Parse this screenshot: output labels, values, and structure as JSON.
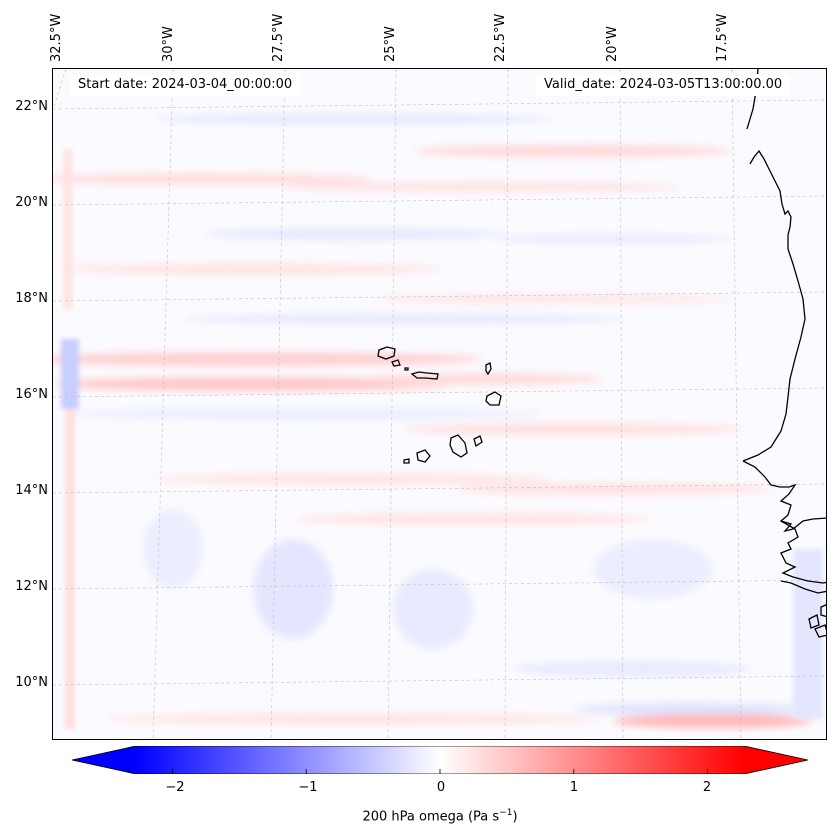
{
  "map": {
    "start_date": "Start date: 2024-03-04_00:00:00",
    "valid_date": "Valid_date: 2024-03-05T13:00:00.00",
    "field": "200 hPa omega",
    "lon_labels": [
      "32.5°W",
      "30°W",
      "27.5°W",
      "25°W",
      "22.5°W",
      "20°W",
      "17.5°W"
    ],
    "lat_labels": [
      "22°N",
      "20°N",
      "18°N",
      "16°N",
      "14°N",
      "12°N",
      "10°N"
    ],
    "places": [
      "Cape Verde Islands",
      "West African coast"
    ]
  },
  "colorbar": {
    "label_text": "200 hPa omega (Pa s",
    "label_unit_sup": "−1",
    "label_close": ")",
    "ticks": [
      "−2",
      "−1",
      "0",
      "1",
      "2"
    ],
    "range": [
      -2.75,
      2.75
    ],
    "cmap": "bwr",
    "low_color": "#0000ff",
    "mid_color": "#ffffff",
    "high_color": "#ff0000"
  }
}
